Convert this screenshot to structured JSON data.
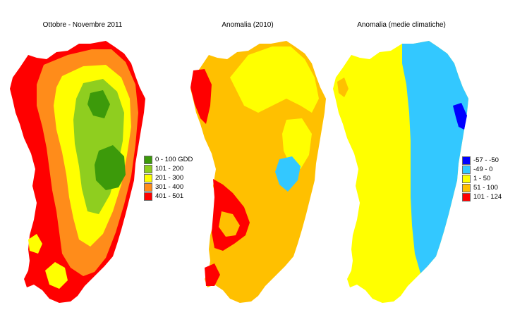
{
  "maps": [
    {
      "title": "Ottobre - Novembre 2011",
      "legend": [
        {
          "label": "0 - 100 GDD",
          "color": "#3c9a0a"
        },
        {
          "label": "101 - 200",
          "color": "#8fce1f"
        },
        {
          "label": "201 - 300",
          "color": "#ffff00"
        },
        {
          "label": "301 - 400",
          "color": "#ff8c1a"
        },
        {
          "label": "401 - 501",
          "color": "#ff0000"
        }
      ]
    },
    {
      "title": "Anomalia (2010)",
      "legend": []
    },
    {
      "title": "Anomalia (medie climatiche)",
      "legend": [
        {
          "label": "-57 - -50",
          "color": "#0000ff"
        },
        {
          "label": "-49 - 0",
          "color": "#33c8ff"
        },
        {
          "label": "1 - 50",
          "color": "#ffff00"
        },
        {
          "label": "51 - 100",
          "color": "#ffc000"
        },
        {
          "label": "101 - 124",
          "color": "#ff0000"
        }
      ]
    }
  ]
}
